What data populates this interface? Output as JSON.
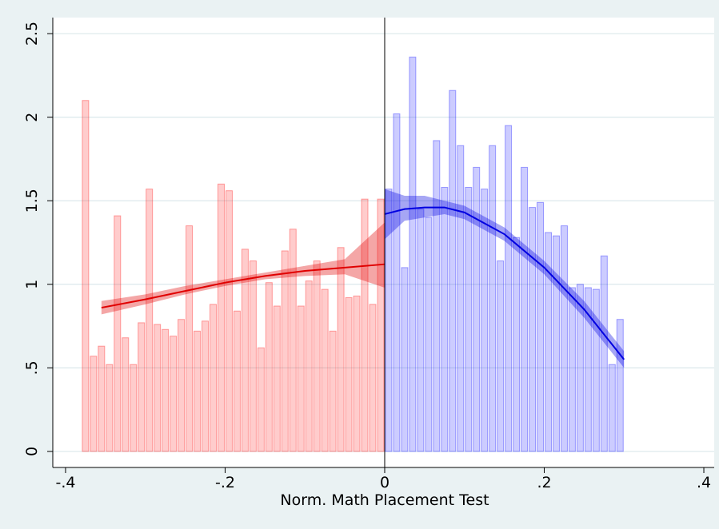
{
  "chart_data": {
    "type": "histogram",
    "xlabel": "Norm. Math Placement Test",
    "xlim": [
      -0.416,
      0.413
    ],
    "ylim": [
      -0.096,
      2.596
    ],
    "xticks": [
      {
        "value": -0.4,
        "label": "-.4"
      },
      {
        "value": -0.2,
        "label": "-.2"
      },
      0,
      {
        "value": 0.2,
        "label": ".2"
      },
      {
        "value": 0.4,
        "label": ".4"
      }
    ],
    "yticks": [
      0,
      {
        "value": 0.5,
        "label": ".5"
      },
      1,
      1.5,
      2,
      2.5
    ],
    "grid": true,
    "vline": 0,
    "histograms": [
      {
        "color": "#ff0000",
        "bins": [
          -0.38,
          -0.37,
          -0.36,
          -0.35,
          -0.34,
          -0.33,
          -0.32,
          -0.31,
          -0.3,
          -0.29,
          -0.28,
          -0.27,
          -0.26,
          -0.25,
          -0.24,
          -0.23,
          -0.22,
          -0.21,
          -0.2,
          -0.19,
          -0.18,
          -0.17,
          -0.16,
          -0.15,
          -0.14,
          -0.13,
          -0.12,
          -0.11,
          -0.1,
          -0.09,
          -0.08,
          -0.07,
          -0.06,
          -0.05,
          -0.04,
          -0.03,
          -0.02,
          -0.01,
          0
        ],
        "counts": [
          2.1,
          0.57,
          0.63,
          0.52,
          1.41,
          0.68,
          0.52,
          0.77,
          1.57,
          0.76,
          0.73,
          0.69,
          0.79,
          1.35,
          0.72,
          0.78,
          0.88,
          1.6,
          1.56,
          0.84,
          1.21,
          1.14,
          0.62,
          1.01,
          0.87,
          1.2,
          1.33,
          0.87,
          1.02,
          1.14,
          0.97,
          0.72,
          1.22,
          0.92,
          0.93,
          1.51,
          0.88,
          1.51
        ]
      },
      {
        "color": "#0000ff",
        "bins": [
          0,
          0.01,
          0.02,
          0.03,
          0.04,
          0.05,
          0.06,
          0.07,
          0.08,
          0.09,
          0.1,
          0.11,
          0.12,
          0.13,
          0.14,
          0.15,
          0.16,
          0.17,
          0.18,
          0.19,
          0.2,
          0.21,
          0.22,
          0.23,
          0.24,
          0.25,
          0.26,
          0.27,
          0.28,
          0.29,
          0.3
        ],
        "counts": [
          1.57,
          2.02,
          1.1,
          2.36,
          1.45,
          1.4,
          1.86,
          1.58,
          2.16,
          1.83,
          1.58,
          1.7,
          1.57,
          1.83,
          1.14,
          1.95,
          1.28,
          1.7,
          1.46,
          1.49,
          1.31,
          1.29,
          1.35,
          0.98,
          1.0,
          0.98,
          0.97,
          1.17,
          0.52,
          0.79
        ]
      }
    ],
    "lines": [
      {
        "color": "#e00000",
        "x": [
          -0.355,
          -0.3,
          -0.25,
          -0.2,
          -0.15,
          -0.1,
          -0.05,
          0
        ],
        "y": [
          0.86,
          0.91,
          0.96,
          1.01,
          1.05,
          1.08,
          1.1,
          1.12
        ],
        "lower": [
          0.82,
          0.88,
          0.94,
          0.99,
          1.03,
          1.05,
          1.06,
          0.98
        ],
        "upper": [
          0.9,
          0.94,
          0.99,
          1.03,
          1.07,
          1.11,
          1.15,
          1.37
        ]
      },
      {
        "color": "#0000e0",
        "x": [
          0,
          0.025,
          0.05,
          0.075,
          0.1,
          0.15,
          0.2,
          0.25,
          0.3
        ],
        "y": [
          1.42,
          1.45,
          1.46,
          1.46,
          1.43,
          1.3,
          1.1,
          0.85,
          0.55
        ],
        "lower": [
          1.27,
          1.38,
          1.4,
          1.42,
          1.39,
          1.26,
          1.06,
          0.8,
          0.5
        ],
        "upper": [
          1.57,
          1.53,
          1.53,
          1.5,
          1.47,
          1.34,
          1.14,
          0.9,
          0.6
        ]
      }
    ]
  }
}
